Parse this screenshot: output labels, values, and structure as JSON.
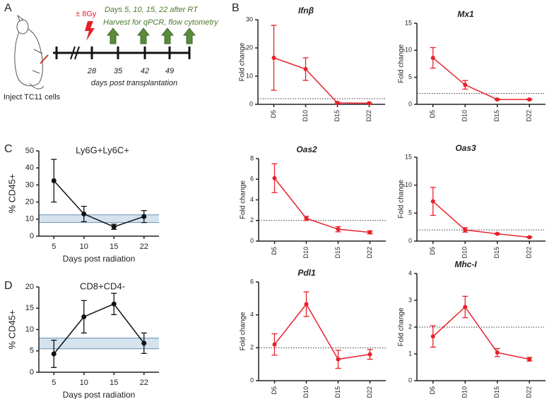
{
  "panel_labels": [
    "A",
    "B",
    "C",
    "D"
  ],
  "timeline": {
    "dose": "± 8Gy",
    "harvest_days": "Days 5, 10, 15, 22 after RT",
    "harvest_assays": "Harvest for qPCR, flow cytometry",
    "ticks": [
      28,
      35,
      42,
      49
    ],
    "axis_label": "days post transplantation",
    "injection": "Inject TC11 cells"
  },
  "chart_data": [
    {
      "type": "line",
      "title": "Ifnβ",
      "ylabel": "Fold change",
      "categories": [
        "D5",
        "D10",
        "D15",
        "D22"
      ],
      "values": [
        16.5,
        12.5,
        0.5,
        0.4
      ],
      "errors": [
        11.5,
        4,
        0.3,
        0.2
      ],
      "color": "#e8202a",
      "ylim": [
        0,
        30
      ],
      "yticks": [
        0,
        10,
        20,
        30
      ],
      "reference_line": 2
    },
    {
      "type": "line",
      "title": "Mx1",
      "ylabel": "Fold change",
      "categories": [
        "D5",
        "D10",
        "D15",
        "D22"
      ],
      "values": [
        8.6,
        3.6,
        0.9,
        0.9
      ],
      "errors": [
        1.9,
        0.8,
        0.1,
        0.1
      ],
      "color": "#e8202a",
      "ylim": [
        0,
        15
      ],
      "yticks": [
        0,
        5,
        10,
        15
      ],
      "reference_line": 2
    },
    {
      "type": "line",
      "title": "Oas2",
      "ylabel": "Fold change",
      "categories": [
        "D5",
        "D10",
        "D15",
        "D22"
      ],
      "values": [
        6.1,
        2.2,
        1.15,
        0.85
      ],
      "errors": [
        1.4,
        0.2,
        0.25,
        0.15
      ],
      "color": "#e8202a",
      "ylim": [
        0,
        8
      ],
      "yticks": [
        0,
        2,
        4,
        6,
        8
      ],
      "reference_line": 2
    },
    {
      "type": "line",
      "title": "Oas3",
      "ylabel": "Fold change",
      "categories": [
        "D5",
        "D10",
        "D15",
        "D22"
      ],
      "values": [
        7.1,
        2.0,
        1.3,
        0.7
      ],
      "errors": [
        2.5,
        0.4,
        0.1,
        0.1
      ],
      "color": "#e8202a",
      "ylim": [
        0,
        15
      ],
      "yticks": [
        0,
        5,
        10,
        15
      ],
      "reference_line": 2
    },
    {
      "type": "line",
      "title": "Pdl1",
      "ylabel": "Fold change",
      "categories": [
        "D5",
        "D10",
        "D15",
        "D22"
      ],
      "values": [
        2.2,
        4.65,
        1.3,
        1.6
      ],
      "errors": [
        0.65,
        0.75,
        0.55,
        0.3
      ],
      "color": "#e8202a",
      "ylim": [
        0,
        6
      ],
      "yticks": [
        0,
        2,
        4,
        6
      ],
      "reference_line": 2
    },
    {
      "type": "line",
      "title": "Mhc-I",
      "ylabel": "Fold change",
      "categories": [
        "D5",
        "D10",
        "D15",
        "D22"
      ],
      "values": [
        1.65,
        2.75,
        1.05,
        0.8
      ],
      "errors": [
        0.4,
        0.4,
        0.15,
        0.07
      ],
      "color": "#e8202a",
      "ylim": [
        0,
        4
      ],
      "yticks": [
        0,
        1,
        2,
        3,
        4
      ],
      "reference_line": 2
    },
    {
      "type": "line",
      "title": "Ly6G+Ly6C+",
      "ylabel": "% CD45+",
      "xlabel": "Days post radiation",
      "categories": [
        "5",
        "10",
        "15",
        "22"
      ],
      "values": [
        32.5,
        13,
        5.5,
        11.5
      ],
      "errors": [
        12.5,
        4.5,
        1.5,
        3.5
      ],
      "color": "#111111",
      "ylim": [
        0,
        50
      ],
      "yticks": [
        0,
        10,
        20,
        30,
        40,
        50
      ],
      "band": [
        8,
        12.5
      ],
      "band_color": "#c9dcea"
    },
    {
      "type": "line",
      "title": "CD8+CD4-",
      "ylabel": "% CD45+",
      "xlabel": "Days post radiation",
      "categories": [
        "5",
        "10",
        "15",
        "22"
      ],
      "values": [
        4.3,
        13,
        16,
        6.8
      ],
      "errors": [
        3.2,
        3.8,
        2.5,
        2.4
      ],
      "color": "#111111",
      "ylim": [
        0,
        20
      ],
      "yticks": [
        0,
        5,
        10,
        15,
        20
      ],
      "band": [
        5.5,
        8
      ],
      "band_color": "#c9dcea"
    }
  ]
}
